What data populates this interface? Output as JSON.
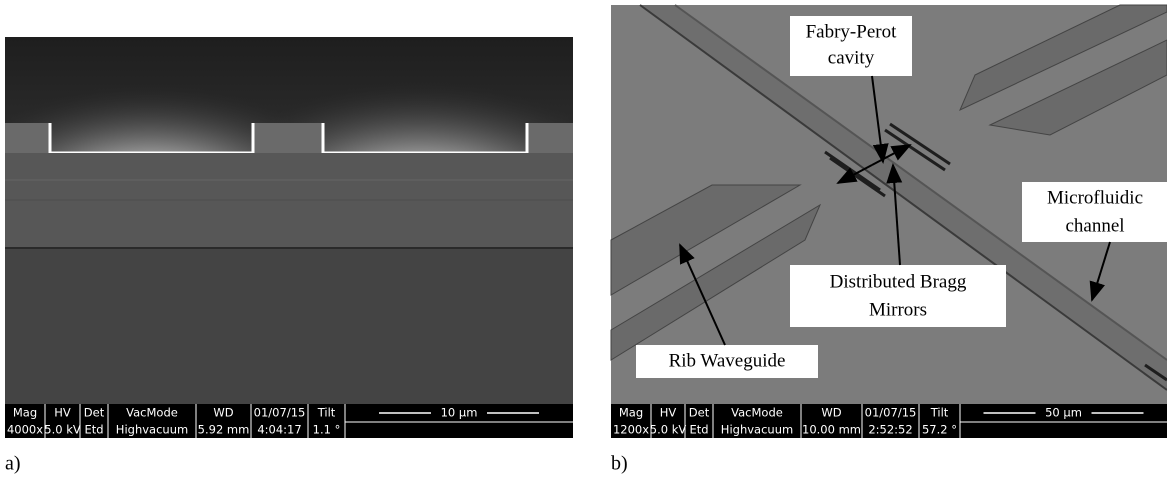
{
  "panels": [
    {
      "label": "a)",
      "info_bar": {
        "headers": [
          "Mag",
          "HV",
          "Det",
          "VacMode",
          "WD",
          "01/07/15",
          "Tilt"
        ],
        "values": [
          "4000x",
          "5.0 kV",
          "Etd",
          "Highvacuum",
          "5.92 mm",
          "4:04:17",
          "1.1 °"
        ],
        "scale": "10 μm"
      }
    },
    {
      "label": "b)",
      "info_bar": {
        "headers": [
          "Mag",
          "HV",
          "Det",
          "VacMode",
          "WD",
          "01/07/15",
          "Tilt"
        ],
        "values": [
          "1200x",
          "5.0 kV",
          "Etd",
          "Highvacuum",
          "10.00 mm",
          "2:52:52",
          "57.2 °"
        ],
        "scale": "50 μm"
      },
      "annotations": [
        {
          "lines": [
            "Fabry-Perot",
            "cavity"
          ]
        },
        {
          "lines": [
            "Distributed Bragg",
            "Mirrors"
          ]
        },
        {
          "lines": [
            "Microfluidic",
            "channel"
          ]
        },
        {
          "lines": [
            "Rib Waveguide"
          ]
        }
      ]
    }
  ]
}
